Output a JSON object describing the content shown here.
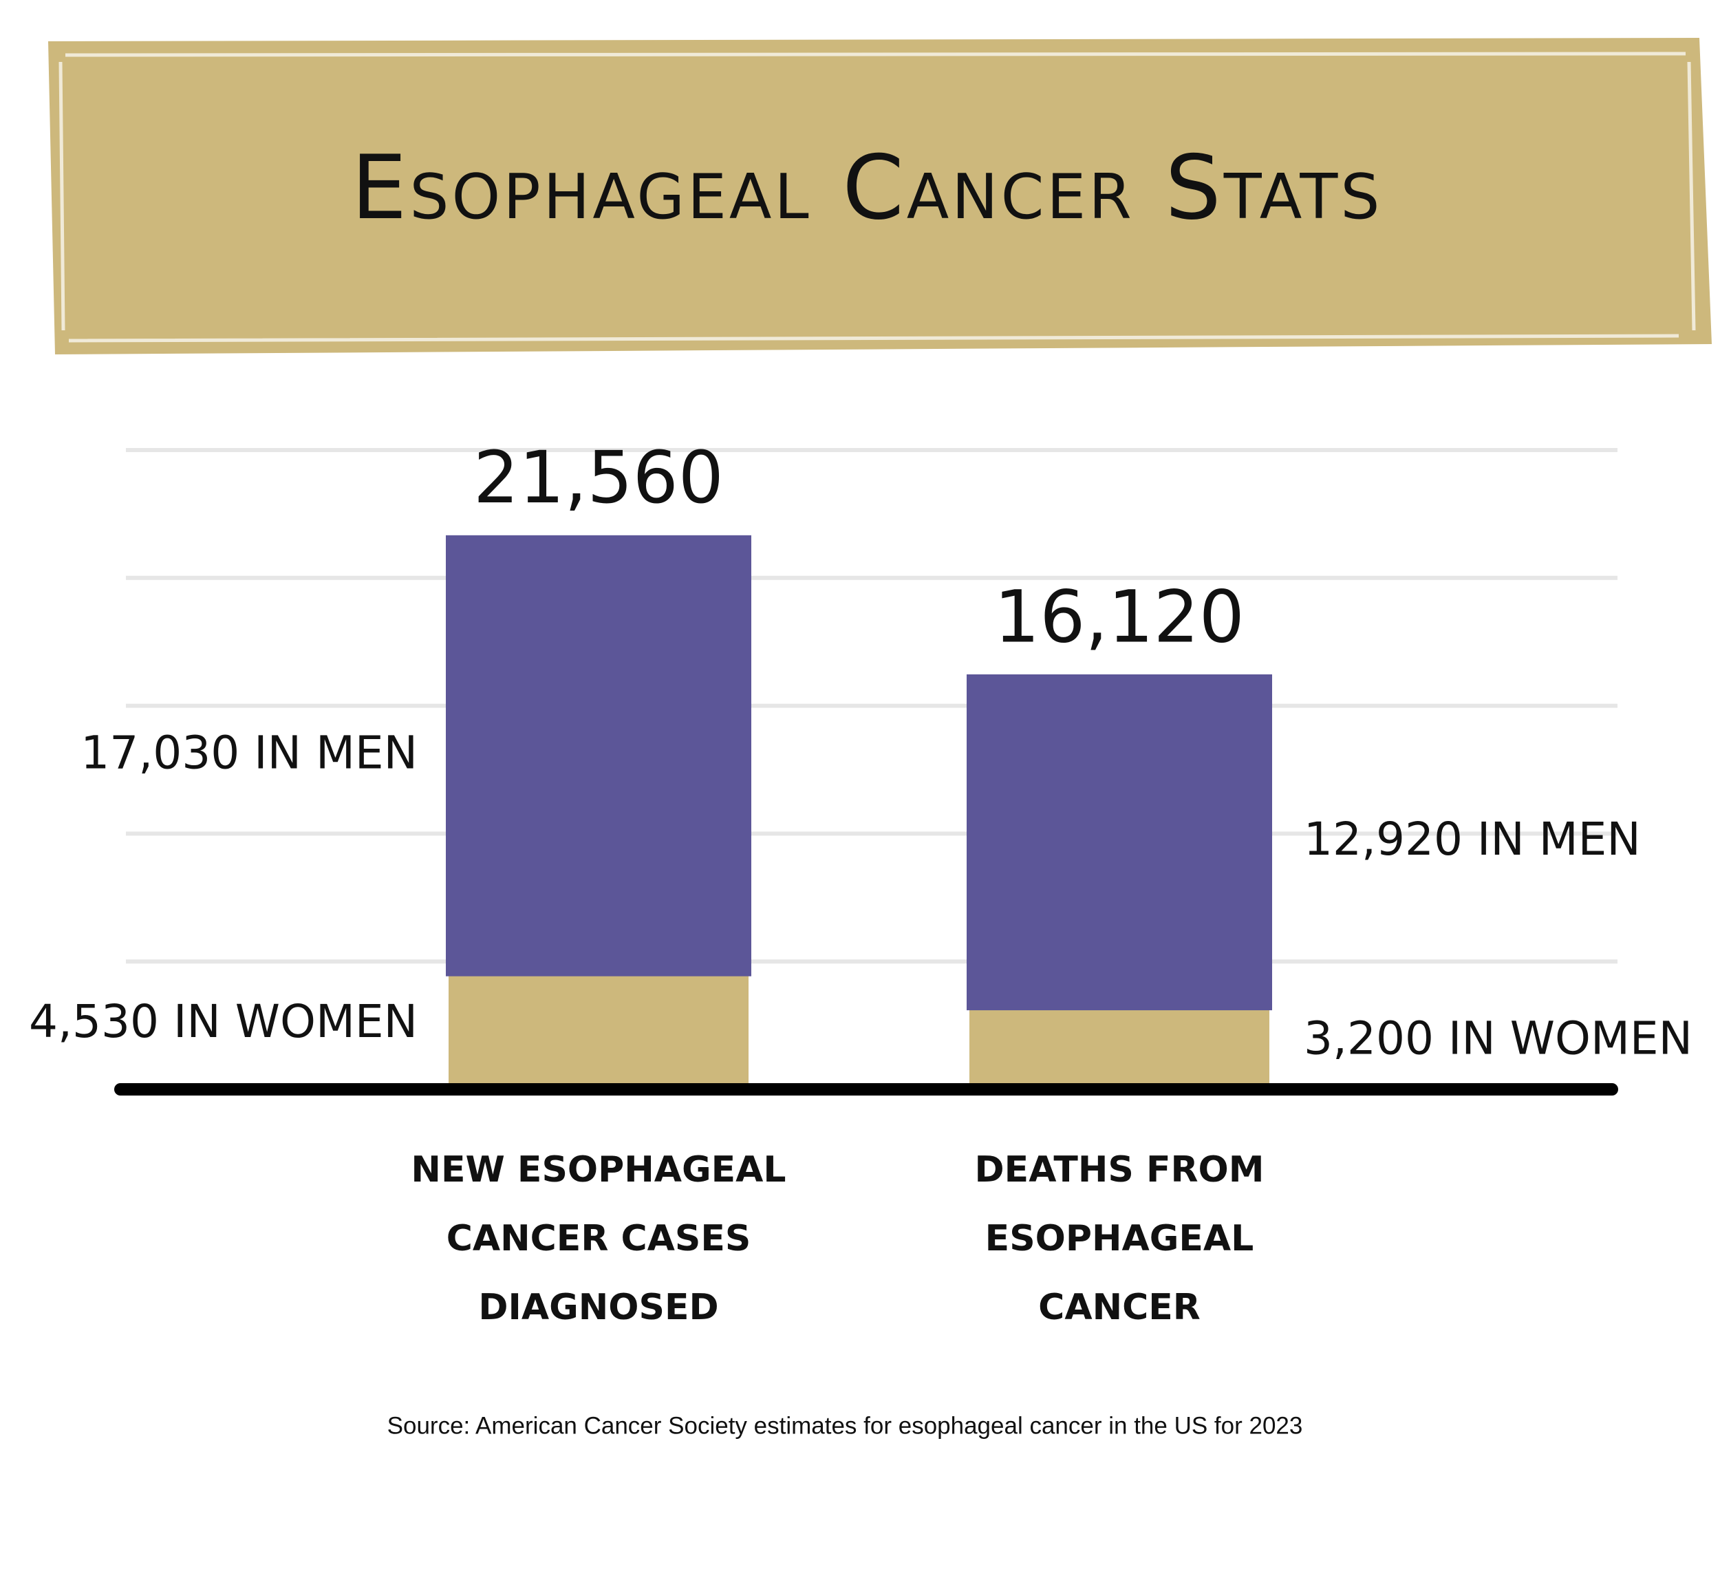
{
  "chart_data": {
    "type": "stacked_bar",
    "title": "Esophageal Cancer Stats",
    "categories": [
      "NEW ESOPHAGEAL CANCER CASES DIAGNOSED",
      "DEATHS FROM ESOPHAGEAL CANCER"
    ],
    "series": [
      {
        "name": "Women",
        "color": "#cdb87c",
        "values": [
          4530,
          3200
        ],
        "value_labels": [
          "4,530 IN WOMEN",
          "3,200 IN WOMEN"
        ]
      },
      {
        "name": "Men",
        "color": "#5c5698",
        "values": [
          17030,
          12920
        ],
        "value_labels": [
          "17,030 IN MEN",
          "12,920 IN MEN"
        ]
      }
    ],
    "totals": [
      21560,
      16120
    ],
    "total_labels": [
      "21,560",
      "16,120"
    ],
    "ylim": [
      0,
      25000
    ],
    "yticks": [
      5000,
      10000,
      15000,
      20000,
      25000
    ],
    "grid": true,
    "source": "Source: American Cancer Society estimates for esophageal cancer in the US for 2023"
  }
}
